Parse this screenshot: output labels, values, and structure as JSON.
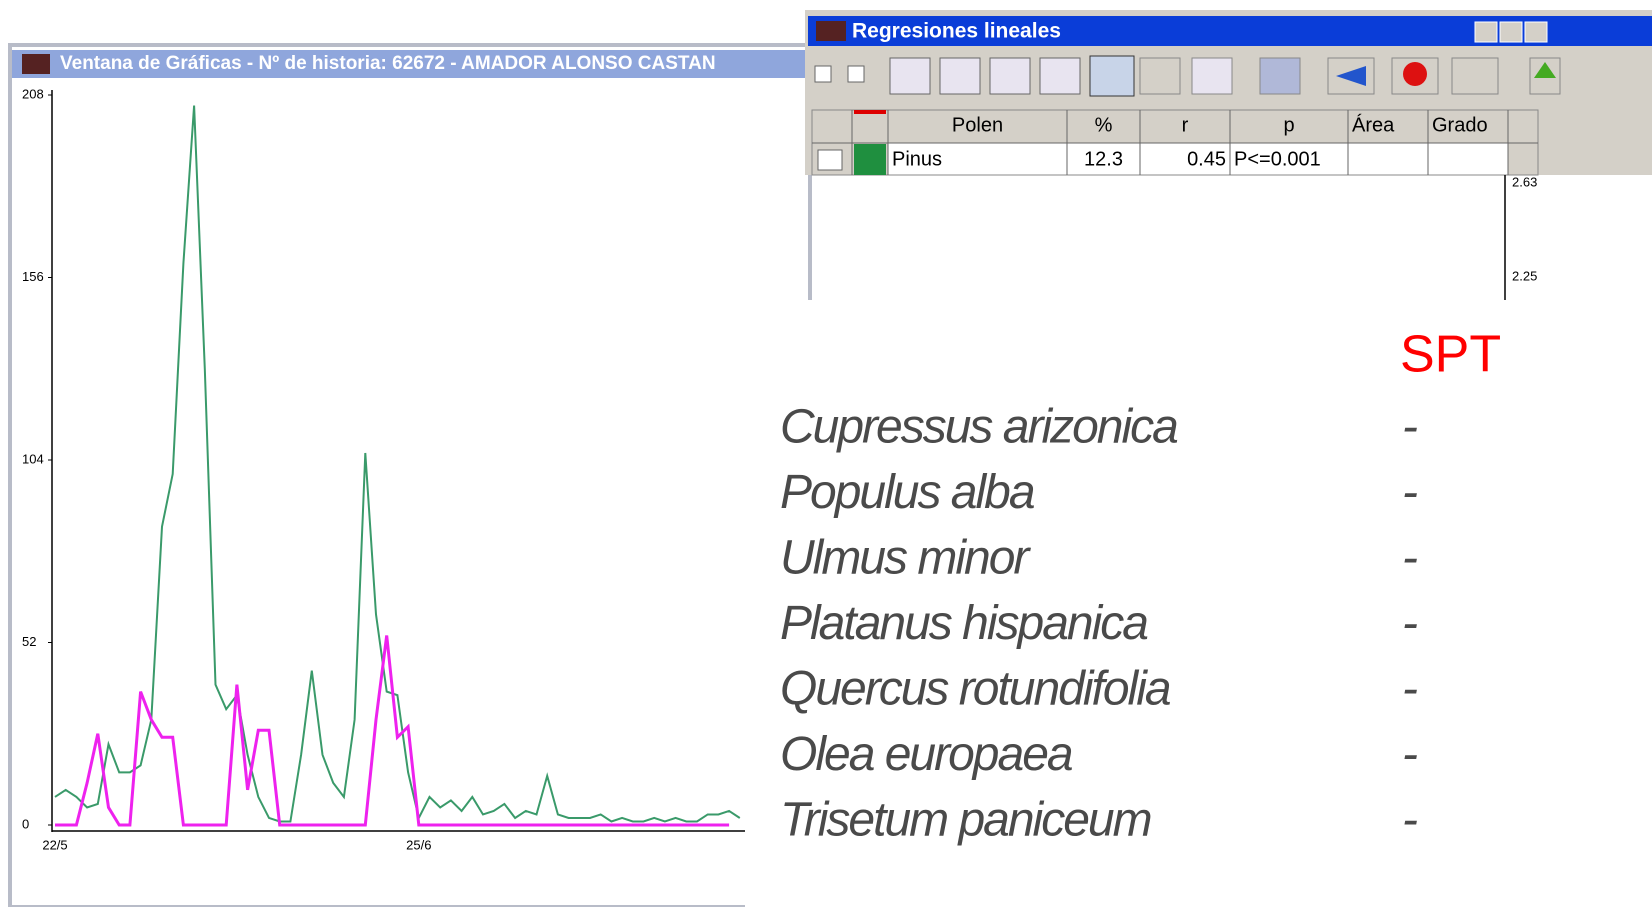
{
  "graph_window": {
    "title": "Ventana de Gráficas - Nº de historia: 62672 - AMADOR ALONSO CASTAN"
  },
  "chart_data": {
    "type": "line",
    "categories": [
      "22/5",
      null,
      null,
      null,
      null,
      null,
      null,
      null,
      null,
      null,
      null,
      null,
      null,
      null,
      null,
      null,
      null,
      null,
      null,
      null,
      null,
      null,
      null,
      null,
      null,
      null,
      null,
      null,
      null,
      null,
      null,
      null,
      null,
      null,
      "25/6",
      null,
      null,
      null,
      null,
      null,
      null,
      null,
      null,
      null,
      null,
      null,
      null,
      null,
      null,
      null,
      null,
      null,
      null,
      null,
      null,
      null,
      null,
      null,
      null,
      null,
      null,
      null,
      null,
      null,
      null
    ],
    "series": [
      {
        "color": "#3a9a6a",
        "values": [
          8,
          10,
          8,
          5,
          6,
          23,
          15,
          15,
          17,
          30,
          85,
          100,
          160,
          205,
          130,
          40,
          33,
          37,
          20,
          8,
          2,
          1,
          1,
          20,
          44,
          20,
          12,
          8,
          30,
          106,
          60,
          38,
          37,
          15,
          2,
          8,
          5,
          7,
          4,
          8,
          3,
          4,
          6,
          2,
          4,
          3,
          14,
          3,
          2,
          2,
          2,
          3,
          1,
          2,
          1,
          1,
          2,
          1,
          2,
          1,
          1,
          3,
          3,
          4,
          2
        ]
      },
      {
        "color": "#ee22ee",
        "values": [
          0,
          0,
          0,
          12,
          26,
          5,
          0,
          0,
          38,
          30,
          25,
          25,
          0,
          0,
          0,
          0,
          0,
          40,
          10,
          27,
          27,
          0,
          0,
          0,
          0,
          0,
          0,
          0,
          0,
          0,
          30,
          54,
          25,
          28,
          0,
          0,
          0,
          0,
          0,
          0,
          0,
          0,
          0,
          0,
          0,
          0,
          0,
          0,
          0,
          0,
          0,
          0,
          0,
          0,
          0,
          0,
          0,
          0,
          0,
          0,
          0,
          0,
          0,
          0,
          null
        ]
      }
    ],
    "ylim": [
      0,
      208
    ],
    "yticks": [
      0,
      52,
      104,
      156,
      208
    ]
  },
  "regression_window": {
    "title": "Regresiones lineales",
    "table": {
      "header": [
        "Polen",
        "%",
        "r",
        "p",
        "Área",
        "Grado"
      ],
      "rows": [
        [
          "Pinus",
          12.3,
          0.45,
          "P<=0.001"
        ]
      ]
    },
    "scale_ticks": [
      2.63,
      2.25
    ]
  },
  "overlay": {
    "column_header": "SPT",
    "rows": [
      {
        "species": "Cupressus arizonica",
        "spt": "-"
      },
      {
        "species": "Populus alba",
        "spt": "-"
      },
      {
        "species": "Ulmus minor",
        "spt": "-"
      },
      {
        "species": "Platanus hispanica",
        "spt": "-"
      },
      {
        "species": "Quercus rotundifolia",
        "spt": "-"
      },
      {
        "species": "Olea europaea",
        "spt": "-"
      },
      {
        "species": "Trisetum paniceum",
        "spt": "-"
      }
    ]
  }
}
